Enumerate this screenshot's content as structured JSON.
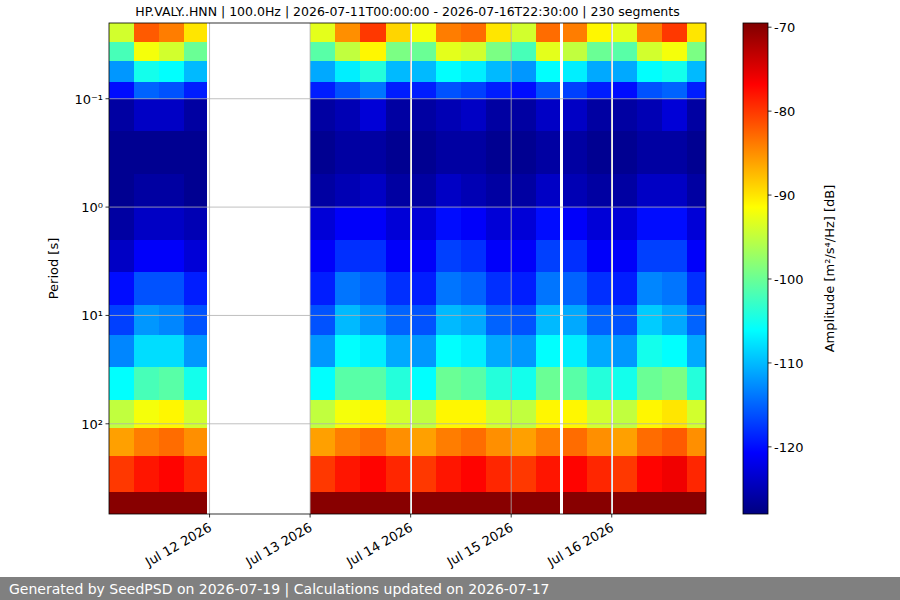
{
  "chart_data": {
    "type": "heatmap",
    "title": "HP.VALY..HNN | 100.0Hz | 2026-07-11T00:00:00 - 2026-07-16T22:30:00 | 230 segments",
    "footer": "Generated by SeedPSD on 2026-07-19 | Calculations updated on 2026-07-17",
    "y_label": "Period [s]",
    "x": [
      "2026-07-11T00:00:00",
      "2026-07-11T06:00:00",
      "2026-07-11T12:00:00",
      "2026-07-11T18:00:00",
      "2026-07-11T23:30:00",
      "2026-07-13T00:00:00",
      "2026-07-13T06:00:00",
      "2026-07-13T12:00:00",
      "2026-07-13T18:00:00",
      "2026-07-13T23:45:00",
      "2026-07-14T00:15:00",
      "2026-07-14T06:00:00",
      "2026-07-14T12:00:00",
      "2026-07-14T18:00:00",
      "2026-07-15T00:00:00",
      "2026-07-15T06:00:00",
      "2026-07-15T11:45:00",
      "2026-07-15T12:15:00",
      "2026-07-15T18:00:00",
      "2026-07-15T23:45:00",
      "2026-07-16T00:15:00",
      "2026-07-16T06:00:00",
      "2026-07-16T12:00:00",
      "2026-07-16T18:00:00",
      "2026-07-16T22:30:00"
    ],
    "y": [
      0.02,
      0.03,
      0.045,
      0.07,
      0.1,
      0.2,
      0.5,
      1,
      2,
      4,
      8,
      15,
      30,
      60,
      110,
      200,
      430,
      680
    ],
    "cells": [
      [
        -94,
        -82,
        -84,
        -90,
        null,
        -93,
        -85,
        -80,
        -89,
        null,
        -92,
        -84,
        -83,
        -90,
        -94,
        -83,
        null,
        -84,
        -91,
        null,
        -93,
        -84,
        -80,
        -90
      ],
      [
        -102,
        -92,
        -94,
        -100,
        null,
        -101,
        -95,
        -91,
        -99,
        null,
        -100,
        -93,
        -94,
        -99,
        -102,
        -93,
        null,
        -95,
        -100,
        null,
        -101,
        -94,
        -92,
        -99
      ],
      [
        -112,
        -105,
        -106,
        -110,
        null,
        -111,
        -107,
        -104,
        -110,
        null,
        -110,
        -106,
        -107,
        -110,
        -112,
        -106,
        null,
        -107,
        -111,
        null,
        -111,
        -106,
        -105,
        -110
      ],
      [
        -120,
        -115,
        -116,
        -119,
        null,
        -119,
        -116,
        -114,
        -119,
        null,
        -119,
        -116,
        -117,
        -119,
        -120,
        -116,
        null,
        -117,
        -119,
        null,
        -120,
        -116,
        -115,
        -119
      ],
      [
        -126,
        -124,
        -124,
        -126,
        null,
        -126,
        -125,
        -123,
        -126,
        null,
        -126,
        -125,
        -124,
        -126,
        -126,
        -124,
        null,
        -124,
        -126,
        null,
        -126,
        -125,
        -123,
        -126
      ],
      [
        -127,
        -127,
        -127,
        -127,
        null,
        -127,
        -126,
        -126,
        -127,
        null,
        -127,
        -126,
        -126,
        -127,
        -127,
        -126,
        null,
        -126,
        -127,
        null,
        -127,
        -126,
        -126,
        -127
      ],
      [
        -127,
        -126,
        -126,
        -127,
        null,
        -126,
        -125,
        -124,
        -126,
        null,
        -126,
        -124,
        -125,
        -126,
        -126,
        -124,
        null,
        -125,
        -126,
        null,
        -126,
        -124,
        -124,
        -126
      ],
      [
        -126,
        -124,
        -124,
        -125,
        null,
        -123,
        -121,
        -121,
        -123,
        null,
        -123,
        -120,
        -121,
        -123,
        -123,
        -120,
        null,
        -121,
        -123,
        null,
        -123,
        -120,
        -120,
        -123
      ],
      [
        -124,
        -121,
        -121,
        -123,
        null,
        -121,
        -118,
        -118,
        -121,
        null,
        -121,
        -117,
        -118,
        -121,
        -121,
        -117,
        null,
        -118,
        -121,
        null,
        -121,
        -117,
        -117,
        -121
      ],
      [
        -120,
        -116,
        -116,
        -119,
        null,
        -119,
        -114,
        -115,
        -118,
        null,
        -119,
        -114,
        -115,
        -118,
        -119,
        -114,
        null,
        -115,
        -118,
        null,
        -119,
        -113,
        -114,
        -118
      ],
      [
        -117,
        -112,
        -113,
        -116,
        null,
        -116,
        -110,
        -112,
        -115,
        null,
        -116,
        -110,
        -111,
        -115,
        -116,
        -110,
        null,
        -111,
        -115,
        null,
        -116,
        -109,
        -111,
        -115
      ],
      [
        -113,
        -108,
        -108,
        -112,
        null,
        -112,
        -106,
        -107,
        -111,
        null,
        -112,
        -106,
        -107,
        -111,
        -112,
        -106,
        null,
        -107,
        -111,
        null,
        -112,
        -105,
        -106,
        -111
      ],
      [
        -106,
        -102,
        -101,
        -105,
        null,
        -106,
        -101,
        -101,
        -104,
        null,
        -106,
        -100,
        -101,
        -104,
        -105,
        -100,
        null,
        -101,
        -104,
        null,
        -105,
        -100,
        -99,
        -104
      ],
      [
        -95,
        -92,
        -91,
        -94,
        null,
        -95,
        -92,
        -91,
        -94,
        null,
        -95,
        -91,
        -91,
        -94,
        -95,
        -91,
        null,
        -91,
        -94,
        null,
        -95,
        -91,
        -90,
        -94
      ],
      [
        -86,
        -84,
        -83,
        -85,
        null,
        -86,
        -84,
        -83,
        -85,
        null,
        -86,
        -84,
        -83,
        -85,
        -86,
        -84,
        null,
        -83,
        -85,
        null,
        -86,
        -83,
        -82,
        -85
      ],
      [
        -80,
        -78,
        -77,
        -79,
        null,
        -80,
        -78,
        -77,
        -79,
        null,
        -80,
        -78,
        -77,
        -79,
        -80,
        -78,
        null,
        -77,
        -79,
        null,
        -80,
        -77,
        -76,
        -79
      ],
      [
        -70,
        -70,
        -70,
        -70,
        null,
        -70,
        -70,
        -70,
        -70,
        null,
        -70,
        -70,
        -70,
        -70,
        -70,
        -70,
        null,
        -70,
        -70,
        null,
        -70,
        -70,
        -70,
        -70
      ]
    ],
    "xlim": [
      "2026-07-11T00:00:00",
      "2026-07-16T22:30:00"
    ],
    "xticks": [
      {
        "value": "2026-07-12T00:00:00",
        "label": "Jul 12 2026"
      },
      {
        "value": "2026-07-13T00:00:00",
        "label": "Jul 13 2026"
      },
      {
        "value": "2026-07-14T00:00:00",
        "label": "Jul 14 2026"
      },
      {
        "value": "2026-07-15T00:00:00",
        "label": "Jul 15 2026"
      },
      {
        "value": "2026-07-16T00:00:00",
        "label": "Jul 16 2026"
      }
    ],
    "ylim": [
      680,
      0.02
    ],
    "yticks": [
      {
        "value": 0.1,
        "label": "10⁻¹"
      },
      {
        "value": 1,
        "label": "10⁰"
      },
      {
        "value": 10,
        "label": "10¹"
      },
      {
        "value": 100,
        "label": "10²"
      }
    ],
    "log": "y",
    "grid": true,
    "colorbar": {
      "label": "Amplitude [m²/s⁴/Hz] [dB]",
      "range": [
        -128,
        -69.5
      ],
      "ticks": [
        -120,
        -110,
        -100,
        -90,
        -80,
        -70
      ]
    }
  }
}
